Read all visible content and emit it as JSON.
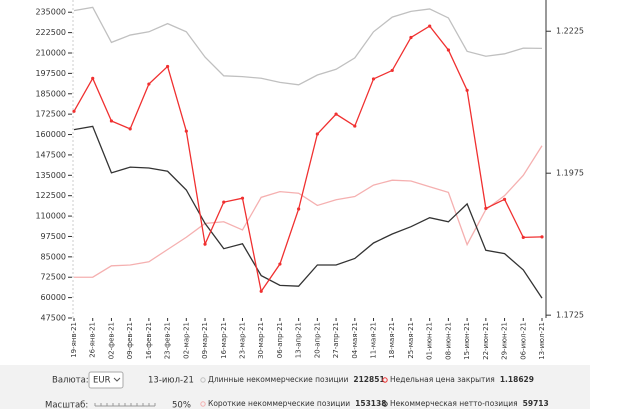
{
  "chart_data": {
    "type": "line",
    "categories": [
      "19-янв-21",
      "26-янв-21",
      "02-фев-21",
      "09-фев-21",
      "16-фев-21",
      "23-фев-21",
      "02-мар-21",
      "09-мар-21",
      "16-мар-21",
      "23-мар-21",
      "30-мар-21",
      "06-апр-21",
      "13-апр-21",
      "20-апр-21",
      "27-апр-21",
      "04-мая-21",
      "11-мая-21",
      "18-мая-21",
      "25-мая-21",
      "01-июн-21",
      "08-июн-21",
      "15-июн-21",
      "22-июн-21",
      "29-июн-21",
      "06-июл-21",
      "13-июл-21"
    ],
    "series": [
      {
        "name": "Длинные некоммерческие позиции",
        "color": "#c0c0c0",
        "values": [
          236000,
          238000,
          216500,
          221000,
          223000,
          228000,
          223000,
          207500,
          196000,
          195500,
          194500,
          192000,
          190500,
          196500,
          200000,
          207000,
          223000,
          232000,
          235500,
          237000,
          231500,
          211000,
          208000,
          209500,
          213000,
          212851
        ]
      },
      {
        "name": "Недельная цена закрытия",
        "color": "#f03030",
        "axis": "y2",
        "values": [
          1.2084,
          1.2142,
          1.2067,
          1.2053,
          1.2132,
          1.2163,
          1.2049,
          1.185,
          1.1924,
          1.1931,
          1.1767,
          1.1815,
          1.1912,
          1.2044,
          1.2079,
          1.2058,
          1.2141,
          1.2156,
          1.2214,
          1.2234,
          1.2192,
          1.2121,
          1.1913,
          1.1929,
          1.1862,
          1.18629
        ]
      },
      {
        "name": "Короткие некоммерческие позиции",
        "color": "#f5b0b0",
        "values": [
          72500,
          72500,
          79500,
          80000,
          82000,
          89500,
          97000,
          105500,
          106500,
          101500,
          121500,
          125000,
          124000,
          116500,
          120000,
          122000,
          129000,
          132000,
          131500,
          128000,
          124500,
          92500,
          114000,
          122500,
          135000,
          153138
        ]
      },
      {
        "name": "Некоммерческая нетто-позиция",
        "color": "#333333",
        "values": [
          163000,
          165000,
          136500,
          140000,
          139500,
          137500,
          126000,
          105500,
          90000,
          93000,
          73500,
          67500,
          67000,
          80000,
          80000,
          84000,
          93500,
          99000,
          103500,
          109000,
          106500,
          117500,
          89000,
          87000,
          77000,
          59713
        ]
      }
    ],
    "ylim": [
      47500,
      242500
    ],
    "yticks": [
      47500,
      60000,
      72500,
      85000,
      97500,
      110000,
      122500,
      135000,
      147500,
      160000,
      172500,
      185000,
      197500,
      210000,
      222500,
      235000
    ],
    "y2lim": [
      1.172,
      1.228
    ],
    "y2ticks": [
      1.1725,
      1.1975,
      1.2225
    ]
  },
  "controls": {
    "currency_label": "Валюта:",
    "currency": "EUR",
    "date": "13-июл-21",
    "scale_label": "Масштаб:",
    "scale": "50%"
  }
}
